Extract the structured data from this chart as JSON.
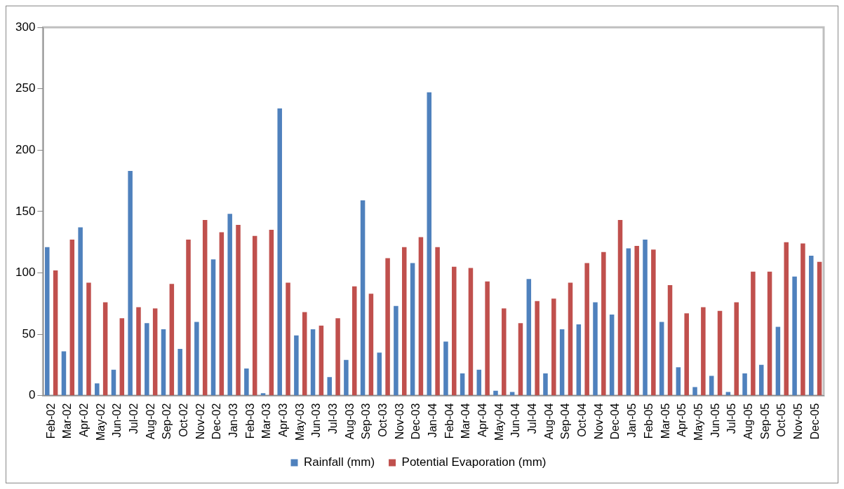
{
  "chart_data": {
    "type": "bar",
    "categories": [
      "Feb-02",
      "Mar-02",
      "Apr-02",
      "May-02",
      "Jun-02",
      "Jul-02",
      "Aug-02",
      "Sep-02",
      "Oct-02",
      "Nov-02",
      "Dec-02",
      "Jan-03",
      "Feb-03",
      "Mar-03",
      "Apr-03",
      "May-03",
      "Jun-03",
      "Jul-03",
      "Aug-03",
      "Sep-03",
      "Oct-03",
      "Nov-03",
      "Dec-03",
      "Jan-04",
      "Feb-04",
      "Mar-04",
      "Apr-04",
      "May-04",
      "Jun-04",
      "Jul-04",
      "Aug-04",
      "Sep-04",
      "Oct-04",
      "Nov-04",
      "Dec-04",
      "Jan-05",
      "Feb-05",
      "Mar-05",
      "Apr-05",
      "May-05",
      "Jun-05",
      "Jul-05",
      "Aug-05",
      "Sep-05",
      "Oct-05",
      "Nov-05",
      "Dec-05"
    ],
    "series": [
      {
        "name": "Rainfall (mm)",
        "color": "#4f81bd",
        "values": [
          121,
          36,
          137,
          10,
          21,
          183,
          59,
          54,
          38,
          60,
          111,
          148,
          22,
          2,
          234,
          49,
          54,
          15,
          29,
          159,
          35,
          73,
          108,
          247,
          44,
          18,
          21,
          4,
          3,
          95,
          18,
          54,
          58,
          76,
          66,
          120,
          127,
          60,
          23,
          7,
          16,
          3,
          18,
          25,
          56,
          97,
          114
        ]
      },
      {
        "name": "Potential Evaporation (mm)",
        "color": "#c0504d",
        "values": [
          102,
          127,
          92,
          76,
          63,
          72,
          71,
          91,
          127,
          143,
          133,
          139,
          130,
          135,
          92,
          68,
          57,
          63,
          89,
          83,
          112,
          121,
          129,
          121,
          105,
          104,
          93,
          71,
          59,
          77,
          79,
          92,
          108,
          117,
          143,
          122,
          119,
          90,
          67,
          72,
          69,
          76,
          101,
          101,
          125,
          124,
          109
        ]
      }
    ],
    "ylim": [
      0,
      300
    ],
    "yticks": [
      0,
      50,
      100,
      150,
      200,
      250,
      300
    ],
    "grid": false,
    "legend": "bottom"
  }
}
